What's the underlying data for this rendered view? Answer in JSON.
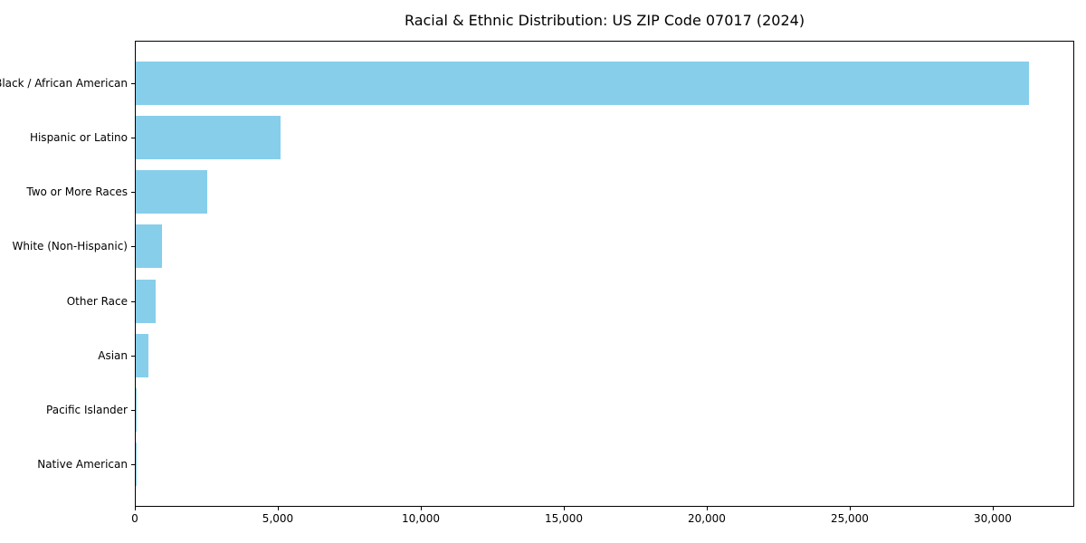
{
  "chart_data": {
    "type": "bar",
    "orientation": "horizontal",
    "title": "Racial & Ethnic Distribution: US ZIP Code 07017 (2024)",
    "categories": [
      "Black / African American",
      "Hispanic or Latino",
      "Two or More Races",
      "White (Non-Hispanic)",
      "Other Race",
      "Asian",
      "Pacific Islander",
      "Native American"
    ],
    "values": [
      31250,
      5060,
      2500,
      920,
      690,
      450,
      30,
      10
    ],
    "xlabel": "",
    "ylabel": "",
    "xlim": [
      0,
      32850
    ],
    "x_ticks": [
      0,
      5000,
      10000,
      15000,
      20000,
      25000,
      30000
    ],
    "x_tick_labels": [
      "0",
      "5,000",
      "10,000",
      "15,000",
      "20,000",
      "25,000",
      "30,000"
    ],
    "bar_color": "#87CEEB",
    "axis_color": "#000000",
    "grid": false,
    "legend": null
  }
}
